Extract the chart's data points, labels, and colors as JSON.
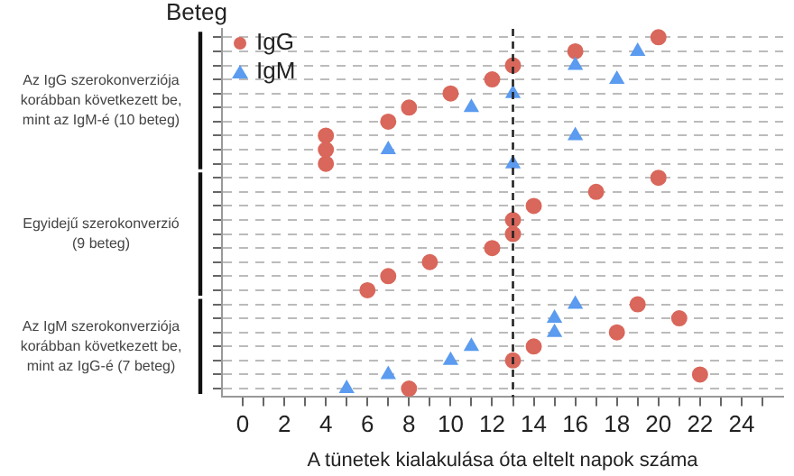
{
  "chart_data": {
    "type": "scatter",
    "ylabel": "Beteg",
    "xlabel": "A tünetek kialakulása óta eltelt napok száma",
    "categories": [
      null,
      null,
      null,
      null,
      null,
      null,
      null,
      null,
      null,
      null,
      null,
      null,
      null,
      null,
      null,
      null,
      null,
      null,
      null,
      null,
      null,
      null,
      null,
      null,
      null,
      null
    ],
    "series": [
      {
        "name": "IgG",
        "color": "#d9675b",
        "marker": "circle",
        "values": [
          20,
          16,
          13,
          12,
          10,
          8,
          7,
          4,
          4,
          4,
          20,
          17,
          14,
          13,
          13,
          12,
          9,
          7,
          6,
          19,
          21,
          18,
          14,
          13,
          22,
          8
        ]
      },
      {
        "name": "IgM",
        "color": "#5b9bf0",
        "marker": "triangle",
        "values": [
          null,
          19,
          16,
          18,
          13,
          11,
          null,
          16,
          7,
          13,
          null,
          null,
          null,
          null,
          null,
          null,
          null,
          null,
          null,
          16,
          15,
          15,
          11,
          10,
          7,
          5
        ]
      }
    ],
    "xlim": [
      -1,
      26
    ],
    "xticks": [
      0,
      {
        "value": 1,
        "label": null
      },
      2,
      {
        "value": 3,
        "label": null
      },
      4,
      {
        "value": 5,
        "label": null
      },
      6,
      {
        "value": 7,
        "label": null
      },
      8,
      {
        "value": 9,
        "label": null
      },
      10,
      {
        "value": 11,
        "label": null
      },
      12,
      {
        "value": 13,
        "label": null
      },
      14,
      {
        "value": 15,
        "label": null
      },
      16,
      {
        "value": 17,
        "label": null
      },
      18,
      {
        "value": 19,
        "label": null
      },
      20,
      {
        "value": 21,
        "label": null
      },
      22,
      {
        "value": 23,
        "label": null
      },
      24,
      {
        "value": 25,
        "label": null
      }
    ],
    "ref_lines": [
      {
        "axis": "x",
        "value": 13,
        "color": "#222222",
        "line_style": "dashed"
      }
    ],
    "annotations": [
      "Az IgG szerokonverziója korábban következett be, mint az IgM-é (10 beteg)",
      "Egyidejű szerokonverzió (9 beteg)",
      "Az IgM szerokonverziója korábban következett be, mint az IgG-é (7 beteg)"
    ],
    "grid": "y",
    "legend": "top left",
    "tick_labels": "x",
    "orientation": "horizontal"
  }
}
